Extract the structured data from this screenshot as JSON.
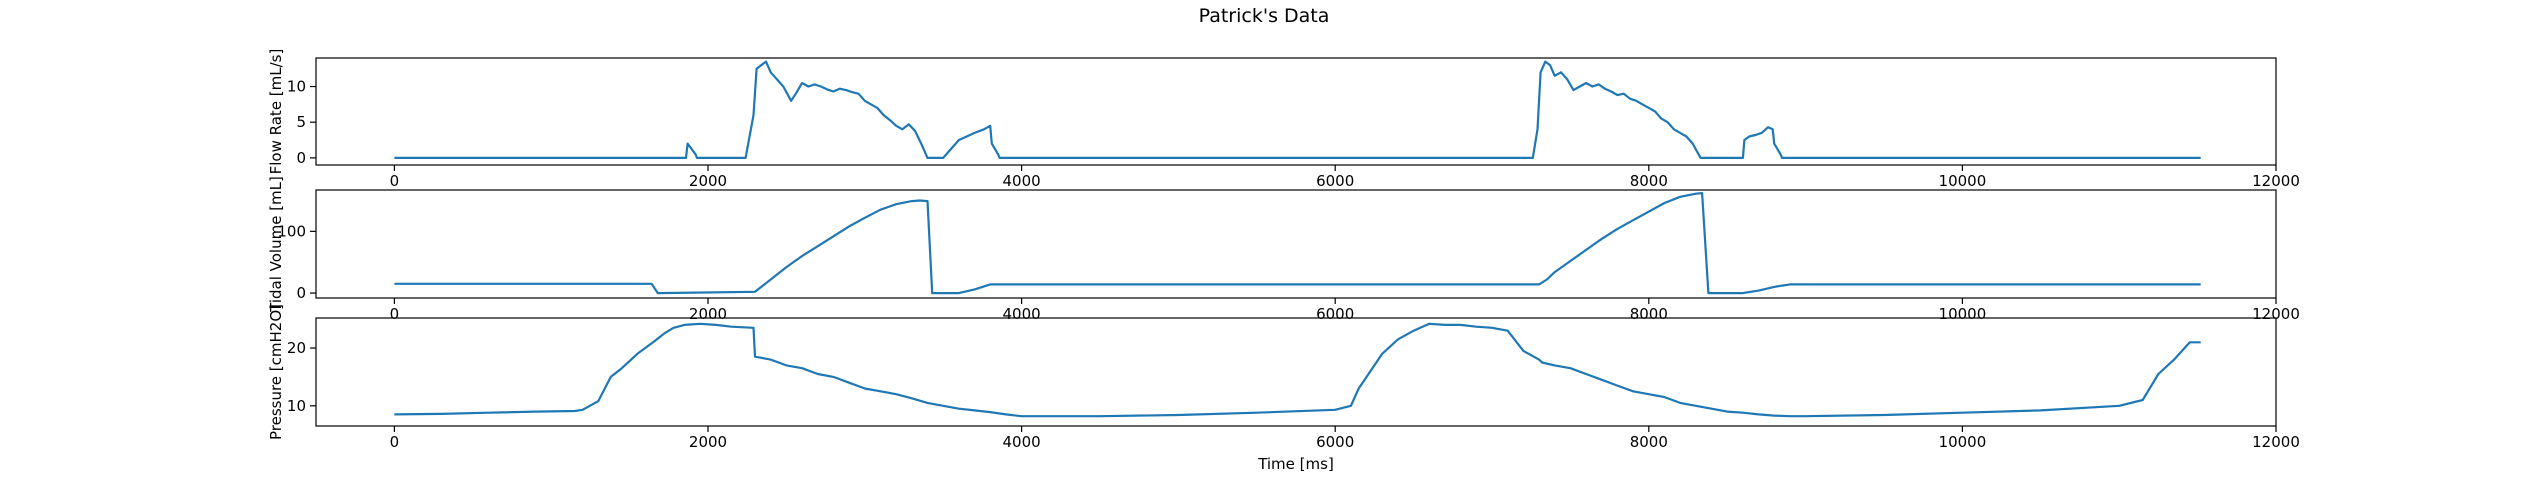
{
  "figure_title": "Patrick's Data",
  "chart_data": [
    {
      "type": "line",
      "ylabel": "Flow Rate [mL/s]",
      "xlabel": "",
      "xlim": [
        -500,
        12000
      ],
      "ylim": [
        -1,
        14
      ],
      "xticks": [
        0,
        2000,
        4000,
        6000,
        8000,
        10000,
        12000
      ],
      "yticks": [
        0,
        5,
        10
      ],
      "grid": false,
      "series": [
        {
          "color": "#1f77b4",
          "x": [
            0,
            1860,
            1870,
            1920,
            1930,
            2240,
            2290,
            2310,
            2340,
            2370,
            2400,
            2440,
            2480,
            2530,
            2560,
            2600,
            2640,
            2680,
            2720,
            2760,
            2800,
            2840,
            2880,
            2920,
            2960,
            3000,
            3040,
            3080,
            3120,
            3160,
            3200,
            3240,
            3280,
            3320,
            3360,
            3400,
            3500,
            3600,
            3650,
            3700,
            3760,
            3800,
            3810,
            3850,
            3860,
            7260,
            7290,
            7310,
            7340,
            7370,
            7400,
            7440,
            7480,
            7520,
            7560,
            7600,
            7640,
            7680,
            7720,
            7760,
            7800,
            7840,
            7880,
            7920,
            7960,
            8000,
            8040,
            8080,
            8120,
            8160,
            8200,
            8240,
            8280,
            8330,
            8400,
            8500,
            8600,
            8610,
            8640,
            8680,
            8720,
            8760,
            8790,
            8800,
            8840,
            8850,
            11520
          ],
          "values": [
            0,
            0,
            2,
            0.5,
            0,
            0,
            6,
            12.5,
            13,
            13.5,
            12,
            11,
            10,
            8,
            9,
            10.5,
            10,
            10.3,
            10,
            9.6,
            9.3,
            9.7,
            9.5,
            9.2,
            9,
            8,
            7.5,
            7,
            6,
            5.3,
            4.5,
            4,
            4.7,
            3.8,
            2,
            0,
            0,
            2.5,
            3,
            3.5,
            4,
            4.5,
            2,
            0.5,
            0,
            0,
            4,
            12,
            13.5,
            13,
            11.5,
            12,
            11,
            9.5,
            10,
            10.5,
            10,
            10.3,
            9.7,
            9.3,
            8.8,
            9,
            8.3,
            8,
            7.5,
            7,
            6.5,
            5.5,
            5,
            4,
            3.5,
            3,
            2,
            0,
            0,
            0,
            0,
            2.5,
            3,
            3.2,
            3.5,
            4.3,
            4,
            2,
            0.5,
            0,
            0
          ]
        }
      ]
    },
    {
      "type": "line",
      "ylabel": "Tidal Volume [mL]",
      "xlabel": "",
      "xlim": [
        -500,
        12000
      ],
      "ylim": [
        -8,
        167
      ],
      "xticks": [
        0,
        2000,
        4000,
        6000,
        8000,
        10000,
        12000
      ],
      "yticks": [
        0,
        100
      ],
      "grid": false,
      "series": [
        {
          "color": "#1f77b4",
          "x": [
            0,
            1640,
            1680,
            2300,
            2340,
            2400,
            2500,
            2600,
            2700,
            2800,
            2900,
            3000,
            3100,
            3200,
            3300,
            3350,
            3400,
            3430,
            3600,
            3700,
            3800,
            7300,
            7350,
            7400,
            7500,
            7600,
            7700,
            7800,
            7900,
            8000,
            8100,
            8200,
            8300,
            8340,
            8380,
            8600,
            8700,
            8800,
            8900,
            11520
          ],
          "values": [
            15,
            15,
            0,
            2,
            10,
            22,
            42,
            60,
            76,
            92,
            108,
            122,
            135,
            144,
            149,
            150,
            149,
            0,
            0,
            6,
            14,
            14,
            22,
            34,
            52,
            70,
            88,
            104,
            118,
            132,
            146,
            156,
            161,
            162,
            0,
            0,
            4,
            10,
            14,
            14
          ]
        }
      ]
    },
    {
      "type": "line",
      "ylabel": "Pressure [cmH2O]",
      "xlabel": "Time [ms]",
      "xlim": [
        -500,
        12000
      ],
      "ylim": [
        6.5,
        25.2
      ],
      "xticks": [
        0,
        2000,
        4000,
        6000,
        8000,
        10000,
        12000
      ],
      "yticks": [
        10,
        20
      ],
      "grid": false,
      "series": [
        {
          "color": "#1f77b4",
          "x": [
            0,
            300,
            600,
            900,
            1150,
            1200,
            1300,
            1380,
            1450,
            1550,
            1650,
            1720,
            1780,
            1850,
            1950,
            2050,
            2150,
            2290,
            2300,
            2400,
            2500,
            2600,
            2700,
            2800,
            2900,
            3000,
            3100,
            3200,
            3300,
            3400,
            3500,
            3600,
            3700,
            3800,
            3900,
            4000,
            4500,
            5000,
            5500,
            6000,
            6100,
            6150,
            6200,
            6300,
            6400,
            6500,
            6600,
            6700,
            6800,
            6900,
            7000,
            7100,
            7200,
            7300,
            7320,
            7400,
            7500,
            7600,
            7700,
            7800,
            7900,
            8000,
            8100,
            8200,
            8300,
            8400,
            8500,
            8600,
            8700,
            8800,
            8900,
            9000,
            9500,
            10000,
            10500,
            11000,
            11150,
            11250,
            11350,
            11450,
            11520
          ],
          "values": [
            8.5,
            8.6,
            8.8,
            9,
            9.1,
            9.3,
            10.8,
            15,
            16.5,
            19,
            21,
            22.5,
            23.5,
            24,
            24.2,
            24,
            23.7,
            23.5,
            18.5,
            18,
            17,
            16.5,
            15.5,
            15,
            14,
            13,
            12.5,
            12,
            11.3,
            10.5,
            10,
            9.5,
            9.2,
            8.9,
            8.5,
            8.2,
            8.2,
            8.4,
            8.8,
            9.3,
            10,
            13,
            15,
            19,
            21.5,
            23,
            24.2,
            24,
            24,
            23.7,
            23.5,
            23,
            19.5,
            18,
            17.5,
            17,
            16.5,
            15.5,
            14.5,
            13.5,
            12.5,
            12,
            11.5,
            10.5,
            10,
            9.5,
            9,
            8.8,
            8.5,
            8.3,
            8.2,
            8.2,
            8.4,
            8.8,
            9.2,
            10,
            11,
            15.5,
            18,
            21,
            21
          ]
        }
      ]
    }
  ]
}
